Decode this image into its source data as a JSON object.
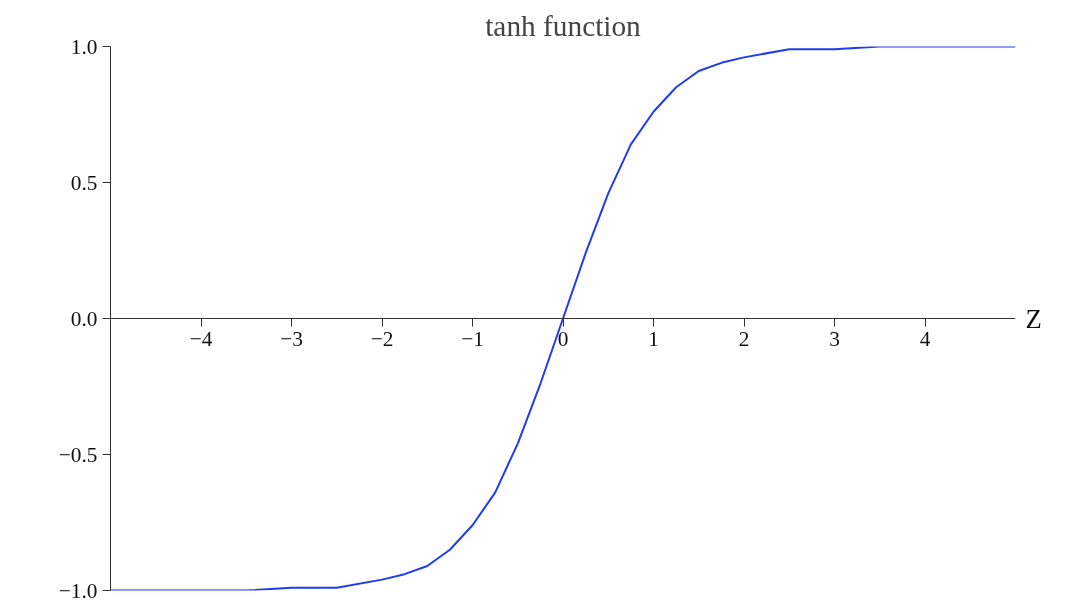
{
  "chart_data": {
    "type": "line",
    "title": "tanh function",
    "xlabel": "Z",
    "x": [
      -5,
      -4.5,
      -4,
      -3.5,
      -3,
      -2.5,
      -2,
      -1.75,
      -1.5,
      -1.25,
      -1,
      -0.75,
      -0.5,
      -0.25,
      0,
      0.25,
      0.5,
      0.75,
      1,
      1.25,
      1.5,
      1.75,
      2,
      2.5,
      3,
      3.5,
      4,
      4.5,
      5
    ],
    "series": [
      {
        "color": "#1f3cf0",
        "values": [
          -1.0,
          -1.0,
          -1.0,
          -1.0,
          -0.99,
          -0.99,
          -0.96,
          -0.94,
          -0.91,
          -0.85,
          -0.76,
          -0.64,
          -0.46,
          -0.24,
          0.0,
          0.24,
          0.46,
          0.64,
          0.76,
          0.85,
          0.91,
          0.94,
          0.96,
          0.99,
          0.99,
          1.0,
          1.0,
          1.0,
          1.0
        ]
      }
    ],
    "xlim": [
      -5,
      5
    ],
    "ylim": [
      -1,
      1
    ],
    "xticks": [
      {
        "value": -4,
        "label": "−4"
      },
      {
        "value": -3,
        "label": "−3"
      },
      {
        "value": -2,
        "label": "−2"
      },
      {
        "value": -1,
        "label": "−1"
      },
      0,
      1,
      2,
      3,
      4
    ],
    "yticks": [
      {
        "value": -1,
        "label": "−1.0"
      },
      {
        "value": -0.5,
        "label": "−0.5"
      },
      {
        "value": 0,
        "label": "0.0"
      },
      {
        "value": 0.5,
        "label": "0.5"
      },
      {
        "value": 1,
        "label": "1.0"
      }
    ],
    "grid": false,
    "marker": "none",
    "line_style": "solid"
  }
}
